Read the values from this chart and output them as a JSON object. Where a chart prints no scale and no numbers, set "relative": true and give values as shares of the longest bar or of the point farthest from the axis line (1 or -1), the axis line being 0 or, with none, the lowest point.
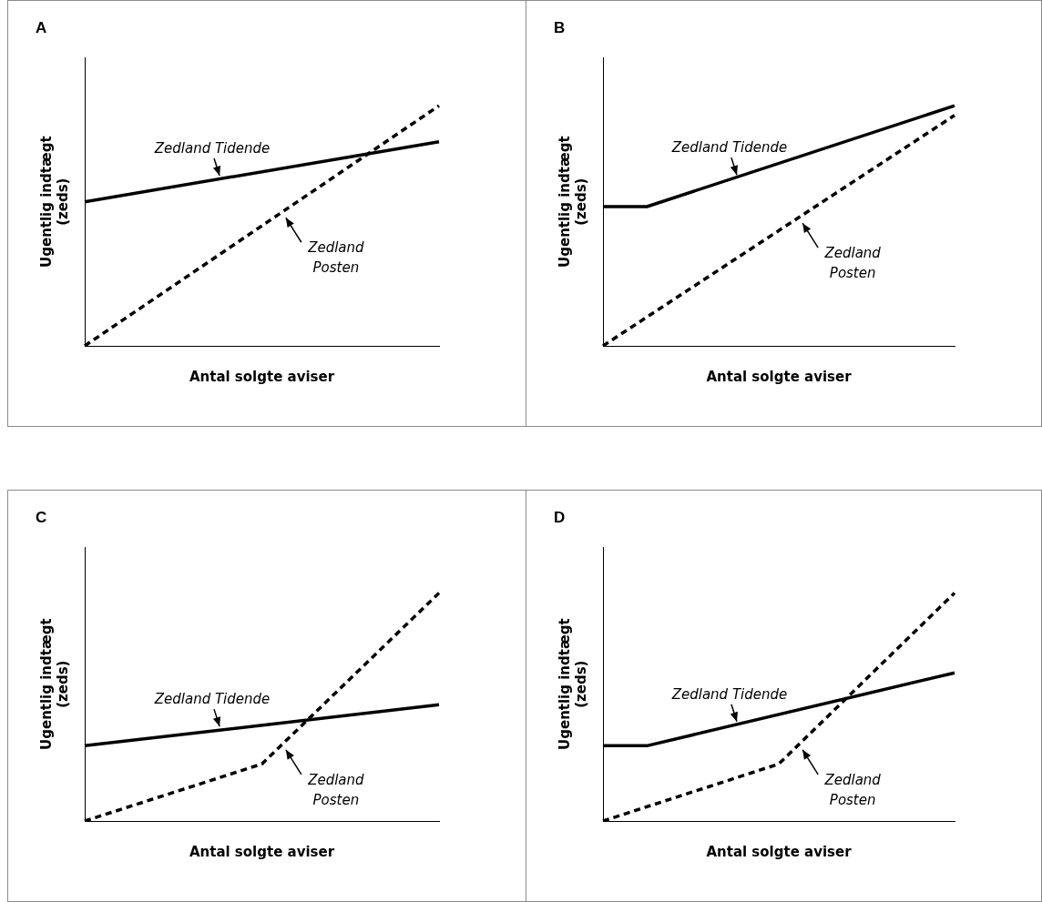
{
  "chart_data": [
    {
      "type": "line",
      "title": "A",
      "xlabel": "Antal solgte aviser",
      "ylabel": "Ugentlig indtægt (zeds)",
      "relative": true,
      "legend": false,
      "grid": false,
      "marker": "none",
      "categories": [
        null,
        null,
        null,
        null,
        null,
        null,
        null,
        null,
        null
      ],
      "series": [
        {
          "name": "Zedland Tidende",
          "color": "#000000",
          "line_style": "solid",
          "values": [
            0.6,
            null,
            null,
            null,
            null,
            null,
            null,
            null,
            0.85
          ]
        },
        {
          "name": "Zedland Posten",
          "color": "#000000",
          "line_style": "dashed",
          "values": [
            0,
            null,
            null,
            null,
            null,
            null,
            null,
            null,
            1
          ]
        }
      ]
    },
    {
      "type": "line",
      "title": "B",
      "xlabel": "Antal solgte aviser",
      "ylabel": "Ugentlig indtægt (zeds)",
      "relative": true,
      "legend": false,
      "grid": false,
      "marker": "none",
      "categories": [
        null,
        null,
        null,
        null,
        null,
        null,
        null,
        null,
        null
      ],
      "series": [
        {
          "name": "Zedland Tidende",
          "color": "#000000",
          "line_style": "solid",
          "values": [
            0.58,
            0.58,
            null,
            null,
            null,
            null,
            null,
            null,
            1
          ]
        },
        {
          "name": "Zedland Posten",
          "color": "#000000",
          "line_style": "dashed",
          "values": [
            0,
            null,
            null,
            null,
            null,
            null,
            null,
            null,
            0.96
          ]
        }
      ]
    },
    {
      "type": "line",
      "title": "C",
      "xlabel": "Antal solgte aviser",
      "ylabel": "Ugentlig indtægt (zeds)",
      "relative": true,
      "legend": false,
      "grid": false,
      "marker": "none",
      "categories": [
        null,
        null,
        null,
        null,
        null,
        null,
        null,
        null,
        null
      ],
      "series": [
        {
          "name": "Zedland Tidende",
          "color": "#000000",
          "line_style": "solid",
          "values": [
            0.33,
            null,
            null,
            null,
            null,
            null,
            null,
            null,
            0.51
          ]
        },
        {
          "name": "Zedland Posten",
          "color": "#000000",
          "line_style": "dashed",
          "values": [
            0,
            null,
            null,
            null,
            0.25,
            null,
            null,
            null,
            1
          ]
        }
      ]
    },
    {
      "type": "line",
      "title": "D",
      "xlabel": "Antal solgte aviser",
      "ylabel": "Ugentlig indtægt (zeds)",
      "relative": true,
      "legend": false,
      "grid": false,
      "marker": "none",
      "categories": [
        null,
        null,
        null,
        null,
        null,
        null,
        null,
        null,
        null
      ],
      "series": [
        {
          "name": "Zedland Tidende",
          "color": "#000000",
          "line_style": "solid",
          "values": [
            0.33,
            0.33,
            null,
            null,
            null,
            null,
            null,
            null,
            0.65
          ]
        },
        {
          "name": "Zedland Posten",
          "color": "#000000",
          "line_style": "dashed",
          "values": [
            0,
            null,
            null,
            null,
            0.25,
            null,
            null,
            null,
            1
          ]
        }
      ]
    }
  ]
}
